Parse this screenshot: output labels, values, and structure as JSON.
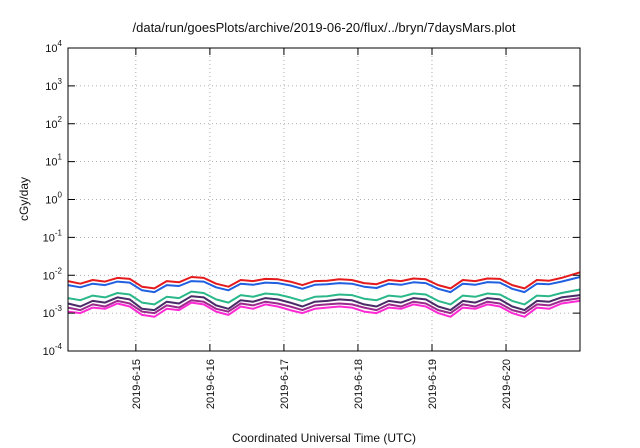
{
  "chart_data": {
    "type": "line",
    "title": "/data/run/goesPlots/archive/2019-06-20/flux/../bryn/7daysMars.plot",
    "xlabel": "Coordinated Universal Time (UTC)",
    "ylabel": "cGy/day",
    "yscale": "log",
    "ylim": [
      0.0001,
      10000
    ],
    "xlim": [
      "2019-06-14T02:00",
      "2019-06-20T23:59"
    ],
    "grid": true,
    "legend": "none",
    "x_ticks": [
      "2019-6-15",
      "2019-6-16",
      "2019-6-17",
      "2019-6-18",
      "2019-6-19",
      "2019-6-20"
    ],
    "x_tick_dates": [
      "2019-06-15",
      "2019-06-16",
      "2019-06-17",
      "2019-06-18",
      "2019-06-19",
      "2019-06-20"
    ],
    "y_ticks": [
      {
        "base": "10",
        "exp": "-4",
        "value": 0.0001
      },
      {
        "base": "10",
        "exp": "-3",
        "value": 0.001
      },
      {
        "base": "10",
        "exp": "-2",
        "value": 0.01
      },
      {
        "base": "10",
        "exp": "-1",
        "value": 0.1
      },
      {
        "base": "10",
        "exp": "0",
        "value": 1
      },
      {
        "base": "10",
        "exp": "1",
        "value": 10
      },
      {
        "base": "10",
        "exp": "2",
        "value": 100
      },
      {
        "base": "10",
        "exp": "3",
        "value": 1000
      },
      {
        "base": "10",
        "exp": "4",
        "value": 10000
      }
    ],
    "x": [
      "2019-06-14T02:00",
      "2019-06-14T06:00",
      "2019-06-14T10:00",
      "2019-06-14T14:00",
      "2019-06-14T18:00",
      "2019-06-14T22:00",
      "2019-06-15T02:00",
      "2019-06-15T06:00",
      "2019-06-15T10:00",
      "2019-06-15T14:00",
      "2019-06-15T18:00",
      "2019-06-15T22:00",
      "2019-06-16T02:00",
      "2019-06-16T06:00",
      "2019-06-16T10:00",
      "2019-06-16T14:00",
      "2019-06-16T18:00",
      "2019-06-16T22:00",
      "2019-06-17T02:00",
      "2019-06-17T06:00",
      "2019-06-17T10:00",
      "2019-06-17T14:00",
      "2019-06-17T18:00",
      "2019-06-17T22:00",
      "2019-06-18T02:00",
      "2019-06-18T06:00",
      "2019-06-18T10:00",
      "2019-06-18T14:00",
      "2019-06-18T18:00",
      "2019-06-18T22:00",
      "2019-06-19T02:00",
      "2019-06-19T06:00",
      "2019-06-19T10:00",
      "2019-06-19T14:00",
      "2019-06-19T18:00",
      "2019-06-19T22:00",
      "2019-06-20T02:00",
      "2019-06-20T06:00",
      "2019-06-20T10:00",
      "2019-06-20T14:00",
      "2019-06-20T18:00",
      "2019-06-20T23:59"
    ],
    "series": [
      {
        "color": "#e41a1c",
        "values": [
          0.007,
          0.006,
          0.0075,
          0.0068,
          0.0085,
          0.008,
          0.005,
          0.0045,
          0.007,
          0.0065,
          0.009,
          0.0085,
          0.006,
          0.005,
          0.0075,
          0.007,
          0.008,
          0.0078,
          0.0068,
          0.0055,
          0.007,
          0.0072,
          0.0078,
          0.0075,
          0.0062,
          0.0058,
          0.0075,
          0.007,
          0.0082,
          0.0078,
          0.0055,
          0.0045,
          0.0075,
          0.007,
          0.0082,
          0.008,
          0.0055,
          0.0045,
          0.0075,
          0.0072,
          0.0085,
          0.012
        ]
      },
      {
        "color": "#1f5fe0",
        "values": [
          0.0055,
          0.0048,
          0.006,
          0.0055,
          0.0068,
          0.0064,
          0.004,
          0.0036,
          0.0055,
          0.0052,
          0.007,
          0.0068,
          0.0048,
          0.004,
          0.006,
          0.0056,
          0.0064,
          0.0062,
          0.0054,
          0.0044,
          0.0056,
          0.0058,
          0.0062,
          0.006,
          0.005,
          0.0046,
          0.006,
          0.0056,
          0.0065,
          0.0062,
          0.0044,
          0.0036,
          0.006,
          0.0056,
          0.0066,
          0.0064,
          0.0044,
          0.0036,
          0.006,
          0.0058,
          0.0068,
          0.009
        ]
      },
      {
        "color": "#2ab88a",
        "values": [
          0.0025,
          0.0022,
          0.0029,
          0.0026,
          0.0034,
          0.0031,
          0.0019,
          0.0017,
          0.0027,
          0.0025,
          0.0037,
          0.0034,
          0.0023,
          0.0019,
          0.003,
          0.0027,
          0.0033,
          0.0031,
          0.0026,
          0.0021,
          0.0027,
          0.0028,
          0.0031,
          0.003,
          0.0024,
          0.0022,
          0.0029,
          0.0027,
          0.0033,
          0.0031,
          0.0021,
          0.0017,
          0.0029,
          0.0027,
          0.0033,
          0.0031,
          0.0021,
          0.0017,
          0.0029,
          0.0028,
          0.0034,
          0.0042
        ]
      },
      {
        "color": "#4b2a68",
        "values": [
          0.0018,
          0.0015,
          0.0021,
          0.0019,
          0.0026,
          0.0023,
          0.0013,
          0.0012,
          0.002,
          0.0018,
          0.0028,
          0.0026,
          0.0016,
          0.0013,
          0.0022,
          0.002,
          0.0025,
          0.0023,
          0.0019,
          0.0015,
          0.002,
          0.0021,
          0.0023,
          0.0022,
          0.0017,
          0.0015,
          0.0021,
          0.0019,
          0.0025,
          0.0023,
          0.0015,
          0.0012,
          0.0021,
          0.0019,
          0.0025,
          0.0023,
          0.0015,
          0.0012,
          0.0021,
          0.002,
          0.0026,
          0.003
        ]
      },
      {
        "color": "#9a2b8c",
        "values": [
          0.0014,
          0.0012,
          0.0017,
          0.0015,
          0.0021,
          0.0018,
          0.0011,
          0.001,
          0.0016,
          0.0014,
          0.0022,
          0.002,
          0.0013,
          0.0011,
          0.0018,
          0.0016,
          0.002,
          0.0018,
          0.0015,
          0.0012,
          0.0016,
          0.0017,
          0.0018,
          0.0017,
          0.0014,
          0.0012,
          0.0017,
          0.0015,
          0.002,
          0.0018,
          0.0012,
          0.001,
          0.0017,
          0.0015,
          0.002,
          0.0018,
          0.0012,
          0.001,
          0.0017,
          0.0016,
          0.0021,
          0.0025
        ]
      },
      {
        "color": "#ff2ad4",
        "values": [
          0.0011,
          0.001,
          0.0014,
          0.0013,
          0.0018,
          0.0015,
          0.0009,
          0.0008,
          0.0013,
          0.0012,
          0.0019,
          0.0017,
          0.0011,
          0.0009,
          0.0015,
          0.0013,
          0.0017,
          0.0015,
          0.0012,
          0.001,
          0.0013,
          0.0014,
          0.0015,
          0.0014,
          0.0011,
          0.001,
          0.0014,
          0.0013,
          0.0017,
          0.0015,
          0.001,
          0.0008,
          0.0014,
          0.0013,
          0.0017,
          0.0015,
          0.001,
          0.0008,
          0.0014,
          0.0013,
          0.0018,
          0.0021
        ]
      }
    ]
  }
}
